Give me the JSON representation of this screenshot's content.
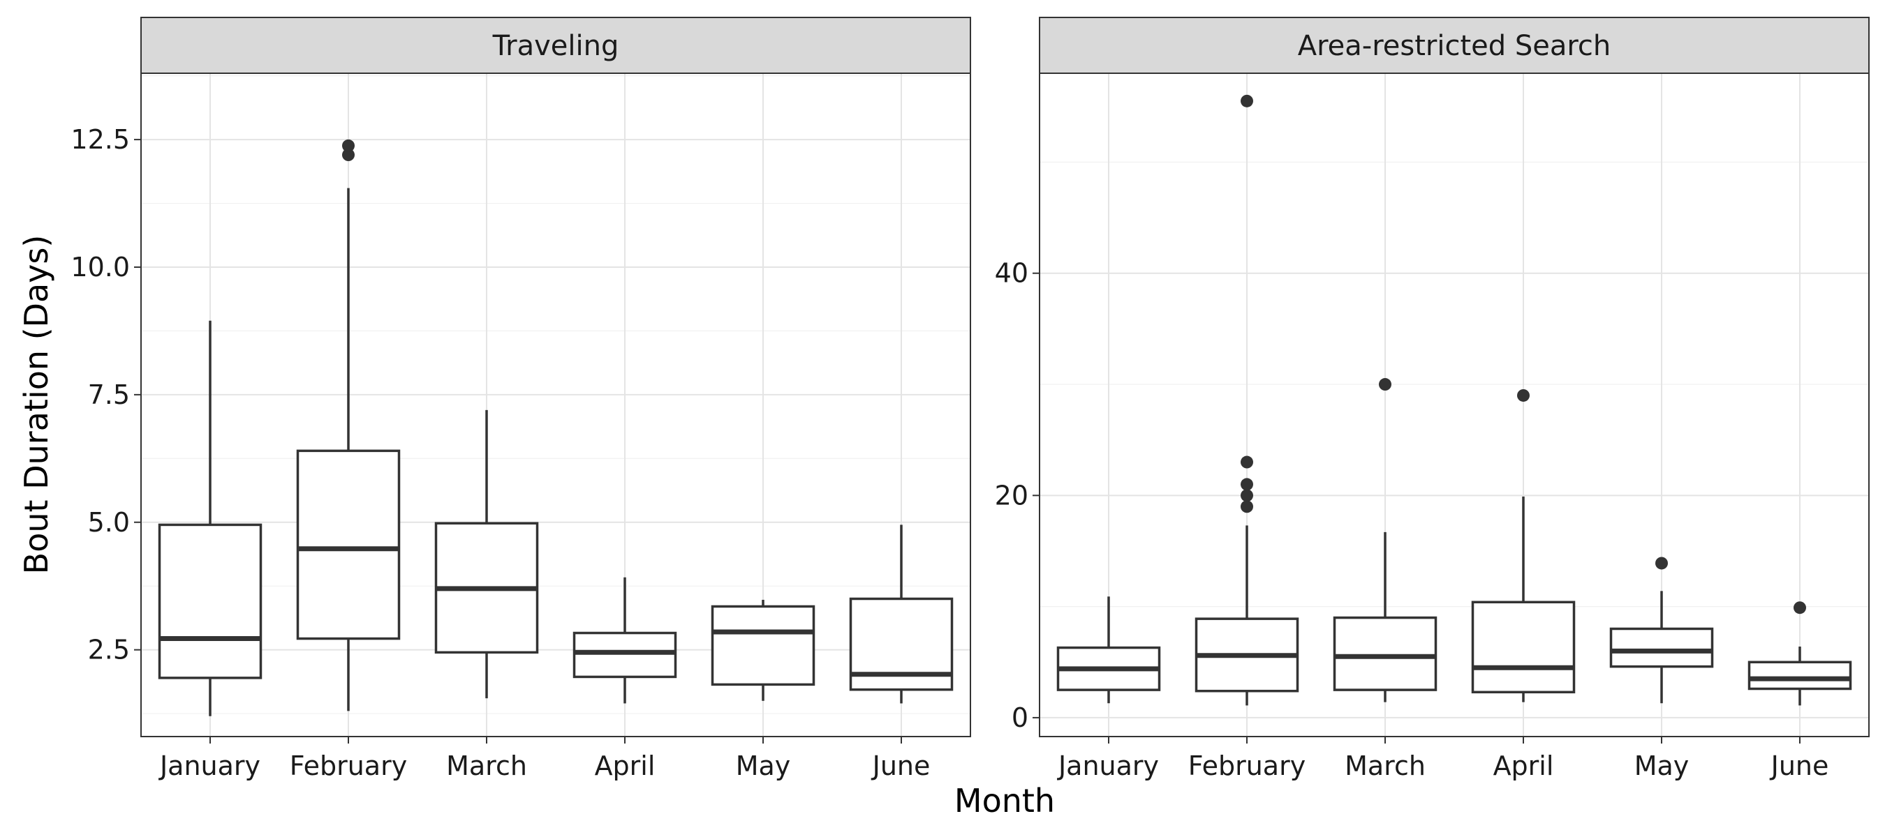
{
  "figure": {
    "xlabel": "Month",
    "ylabel": "Bout Duration (Days)"
  },
  "chart_data": [
    {
      "type": "box",
      "panel_title": "Traveling",
      "categories": [
        "January",
        "February",
        "March",
        "April",
        "May",
        "June"
      ],
      "ylim": [
        0.8,
        13.8
      ],
      "yticks": [
        2.5,
        5.0,
        7.5,
        10.0,
        12.5
      ],
      "ytick_labels": [
        "2.5",
        "5.0",
        "7.5",
        "10.0",
        "12.5"
      ],
      "grid": true,
      "boxes": [
        {
          "category": "January",
          "whisker_low": 1.2,
          "q1": 1.95,
          "median": 2.72,
          "q3": 4.95,
          "whisker_high": 8.95,
          "outliers": []
        },
        {
          "category": "February",
          "whisker_low": 1.3,
          "q1": 2.72,
          "median": 4.48,
          "q3": 6.4,
          "whisker_high": 11.55,
          "outliers": [
            12.2,
            12.38
          ]
        },
        {
          "category": "March",
          "whisker_low": 1.55,
          "q1": 2.45,
          "median": 3.7,
          "q3": 4.98,
          "whisker_high": 7.2,
          "outliers": []
        },
        {
          "category": "April",
          "whisker_low": 1.45,
          "q1": 1.97,
          "median": 2.45,
          "q3": 2.83,
          "whisker_high": 3.92,
          "outliers": []
        },
        {
          "category": "May",
          "whisker_low": 1.5,
          "q1": 1.82,
          "median": 2.85,
          "q3": 3.35,
          "whisker_high": 3.48,
          "outliers": []
        },
        {
          "category": "June",
          "whisker_low": 1.45,
          "q1": 1.72,
          "median": 2.02,
          "q3": 3.5,
          "whisker_high": 4.95,
          "outliers": []
        }
      ]
    },
    {
      "type": "box",
      "panel_title": "Area-restricted Search",
      "categories": [
        "January",
        "February",
        "March",
        "April",
        "May",
        "June"
      ],
      "ylim": [
        -1.7,
        58.0
      ],
      "yticks": [
        0,
        20,
        40
      ],
      "ytick_labels": [
        "0",
        "20",
        "40"
      ],
      "grid": true,
      "boxes": [
        {
          "category": "January",
          "whisker_low": 1.3,
          "q1": 2.5,
          "median": 4.4,
          "q3": 6.3,
          "whisker_high": 10.9,
          "outliers": []
        },
        {
          "category": "February",
          "whisker_low": 1.1,
          "q1": 2.4,
          "median": 5.6,
          "q3": 8.9,
          "whisker_high": 17.3,
          "outliers": [
            19.0,
            20.0,
            21.0,
            23.0,
            55.5
          ]
        },
        {
          "category": "March",
          "whisker_low": 1.4,
          "q1": 2.5,
          "median": 5.5,
          "q3": 9.0,
          "whisker_high": 16.7,
          "outliers": [
            30.0
          ]
        },
        {
          "category": "April",
          "whisker_low": 1.4,
          "q1": 2.3,
          "median": 4.5,
          "q3": 10.4,
          "whisker_high": 19.9,
          "outliers": [
            29.0
          ]
        },
        {
          "category": "May",
          "whisker_low": 1.3,
          "q1": 4.6,
          "median": 6.0,
          "q3": 8.0,
          "whisker_high": 11.4,
          "outliers": [
            13.9
          ]
        },
        {
          "category": "June",
          "whisker_low": 1.1,
          "q1": 2.6,
          "median": 3.5,
          "q3": 5.0,
          "whisker_high": 6.4,
          "outliers": [
            9.9
          ]
        }
      ]
    }
  ]
}
